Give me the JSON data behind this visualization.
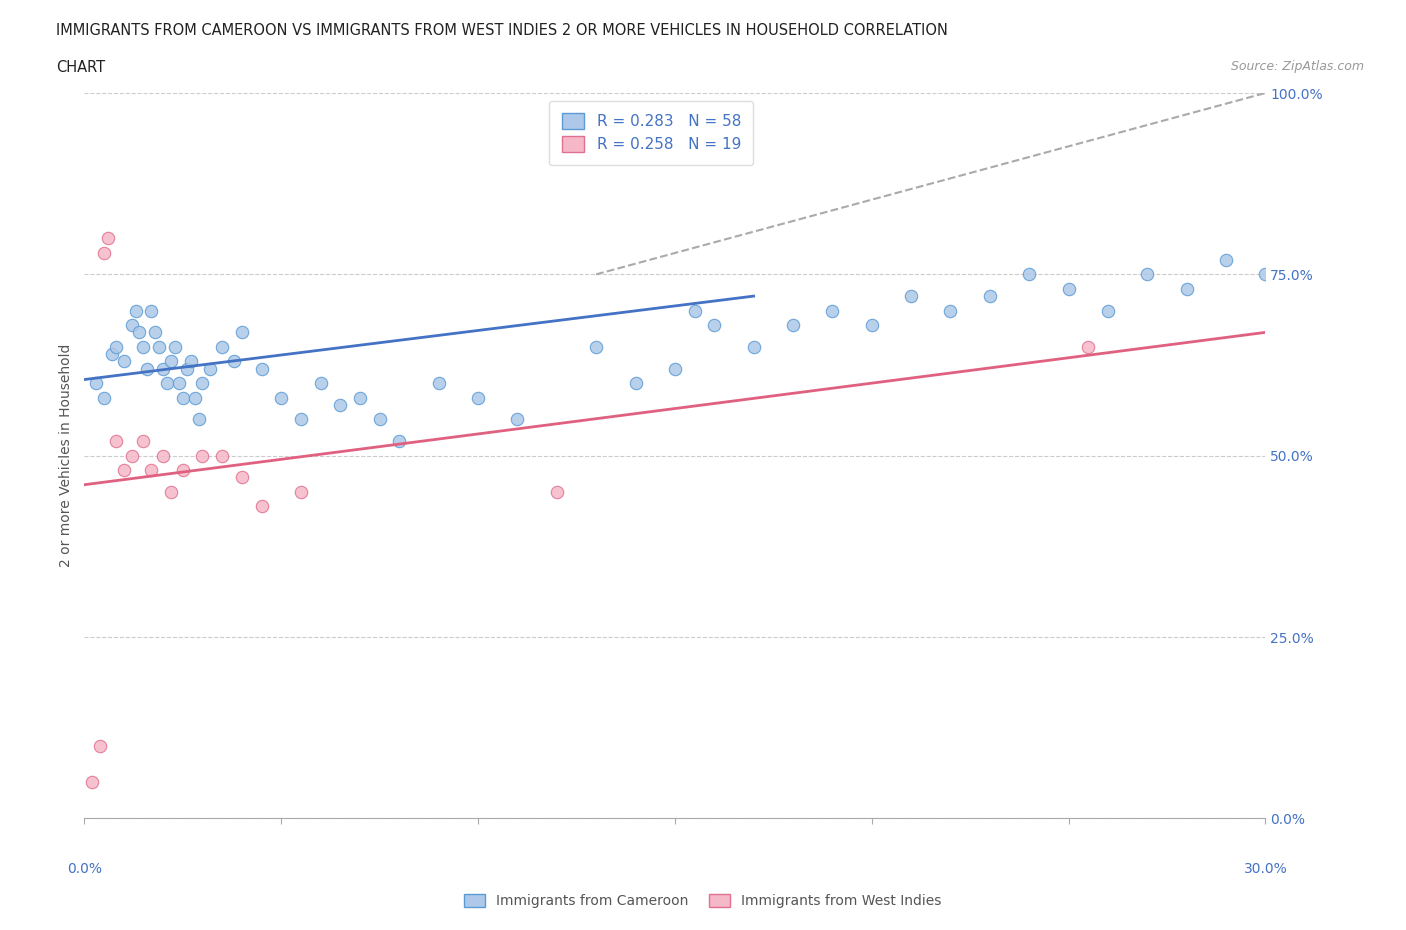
{
  "title_line1": "IMMIGRANTS FROM CAMEROON VS IMMIGRANTS FROM WEST INDIES 2 OR MORE VEHICLES IN HOUSEHOLD CORRELATION",
  "title_line2": "CHART",
  "source_text": "Source: ZipAtlas.com",
  "ylabel": "2 or more Vehicles in Household",
  "color_cameroon_fill": "#adc8e8",
  "color_cameroon_edge": "#5b9bd5",
  "color_westindies_fill": "#f5b8c8",
  "color_westindies_edge": "#e07090",
  "color_blue_line": "#4472c4",
  "color_pink_line": "#e06080",
  "color_text_blue": "#4472c4",
  "color_dashed": "#aaaaaa",
  "cam_x": [
    0.3,
    0.5,
    0.7,
    0.8,
    1.0,
    1.2,
    1.3,
    1.4,
    1.5,
    1.6,
    1.7,
    1.8,
    1.9,
    2.0,
    2.1,
    2.2,
    2.3,
    2.4,
    2.5,
    2.6,
    2.7,
    2.8,
    2.9,
    3.0,
    3.2,
    3.5,
    3.8,
    4.0,
    4.5,
    5.0,
    5.5,
    6.0,
    6.5,
    7.0,
    7.5,
    8.0,
    9.0,
    10.0,
    11.0,
    13.0,
    14.0,
    15.0,
    15.5,
    16.0,
    17.0,
    18.0,
    19.0,
    20.0,
    21.0,
    22.0,
    23.0,
    24.0,
    25.0,
    26.0,
    27.0,
    28.0,
    29.0,
    30.0
  ],
  "cam_y": [
    60.0,
    58.0,
    64.0,
    65.0,
    63.0,
    68.0,
    70.0,
    67.0,
    65.0,
    62.0,
    70.0,
    67.0,
    65.0,
    62.0,
    60.0,
    63.0,
    65.0,
    60.0,
    58.0,
    62.0,
    63.0,
    58.0,
    55.0,
    60.0,
    62.0,
    65.0,
    63.0,
    67.0,
    62.0,
    58.0,
    55.0,
    60.0,
    57.0,
    58.0,
    55.0,
    52.0,
    60.0,
    58.0,
    55.0,
    65.0,
    60.0,
    62.0,
    70.0,
    68.0,
    65.0,
    68.0,
    70.0,
    68.0,
    72.0,
    70.0,
    72.0,
    75.0,
    73.0,
    70.0,
    75.0,
    73.0,
    77.0,
    75.0
  ],
  "wi_x": [
    0.2,
    0.4,
    0.5,
    0.6,
    0.8,
    1.0,
    1.2,
    1.5,
    1.7,
    2.0,
    2.2,
    2.5,
    3.0,
    3.5,
    4.0,
    4.5,
    5.5,
    12.0,
    25.5
  ],
  "wi_y": [
    5.0,
    10.0,
    78.0,
    80.0,
    52.0,
    48.0,
    50.0,
    52.0,
    48.0,
    50.0,
    45.0,
    48.0,
    50.0,
    50.0,
    47.0,
    43.0,
    45.0,
    45.0,
    65.0
  ],
  "blue_line_x": [
    0.0,
    17.0
  ],
  "blue_line_y": [
    60.5,
    72.0
  ],
  "pink_line_x": [
    0.0,
    30.0
  ],
  "pink_line_y": [
    46.0,
    67.0
  ],
  "dashed_line_x": [
    13.0,
    30.0
  ],
  "dashed_line_y": [
    75.0,
    100.0
  ],
  "xlim": [
    0.0,
    30.0
  ],
  "ylim": [
    0.0,
    100.0
  ],
  "yticks": [
    0,
    25,
    50,
    75,
    100
  ],
  "ytick_labels": [
    "0.0%",
    "25.0%",
    "50.0%",
    "75.0%",
    "100.0%"
  ],
  "xtick_left_label": "0.0%",
  "xtick_right_label": "30.0%",
  "legend_label1": "R = 0.283   N = 58",
  "legend_label2": "R = 0.258   N = 19",
  "bottom_legend1": "Immigrants from Cameroon",
  "bottom_legend2": "Immigrants from West Indies"
}
